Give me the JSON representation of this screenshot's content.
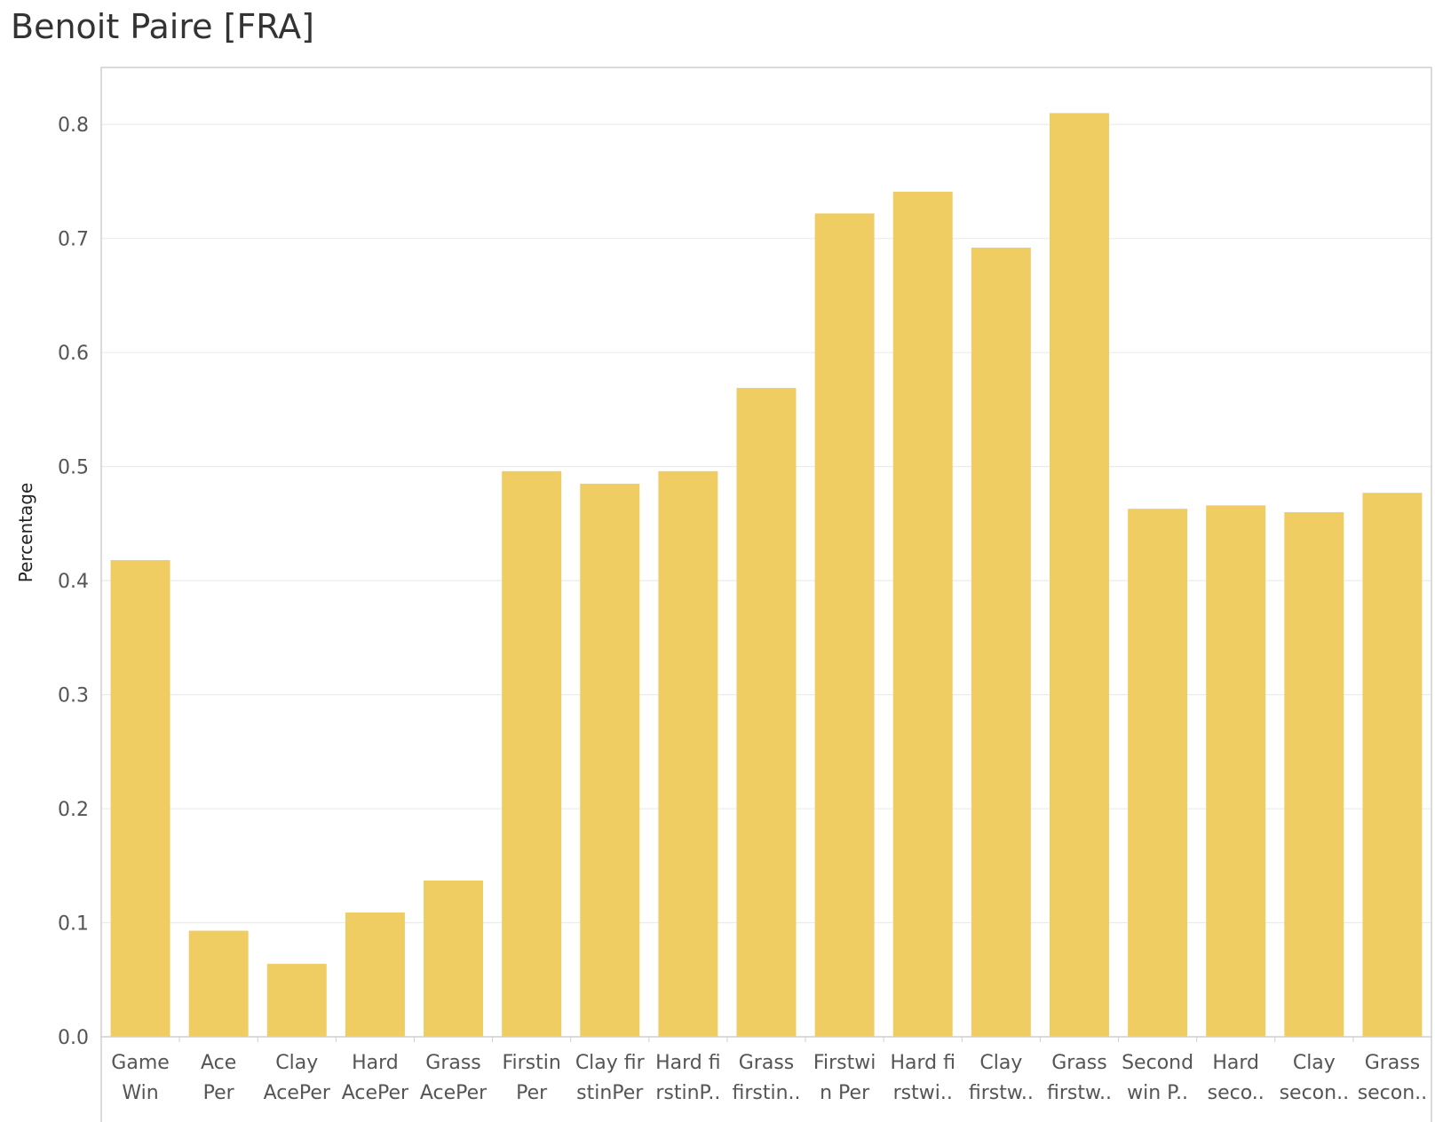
{
  "chart_data": {
    "type": "bar",
    "title": "Benoit Paire [FRA]",
    "ylabel": "Percentage",
    "xlabel": "",
    "ylim": [
      0,
      0.85
    ],
    "yticks": [
      "0.0",
      "0.1",
      "0.2",
      "0.3",
      "0.4",
      "0.5",
      "0.6",
      "0.7",
      "0.8"
    ],
    "grid": true,
    "bar_color": "#efcd63",
    "categories": [
      [
        "Game",
        "Win"
      ],
      [
        "Ace",
        "Per"
      ],
      [
        "Clay",
        "AcePer"
      ],
      [
        "Hard",
        "AcePer"
      ],
      [
        "Grass",
        "AcePer"
      ],
      [
        "Firstin",
        "Per"
      ],
      [
        "Clay fir",
        "stinPer"
      ],
      [
        "Hard fi",
        "rstinP.."
      ],
      [
        "Grass",
        "firstin.."
      ],
      [
        "Firstwi",
        "n Per"
      ],
      [
        "Hard fi",
        "rstwi.."
      ],
      [
        "Clay",
        "firstw.."
      ],
      [
        "Grass",
        "firstw.."
      ],
      [
        "Second",
        "win P.."
      ],
      [
        "Hard",
        "seco.."
      ],
      [
        "Clay",
        "secon.."
      ],
      [
        "Grass",
        "secon.."
      ]
    ],
    "values": [
      0.418,
      0.093,
      0.064,
      0.109,
      0.137,
      0.496,
      0.485,
      0.496,
      0.569,
      0.722,
      0.741,
      0.692,
      0.81,
      0.463,
      0.466,
      0.46,
      0.477
    ]
  }
}
